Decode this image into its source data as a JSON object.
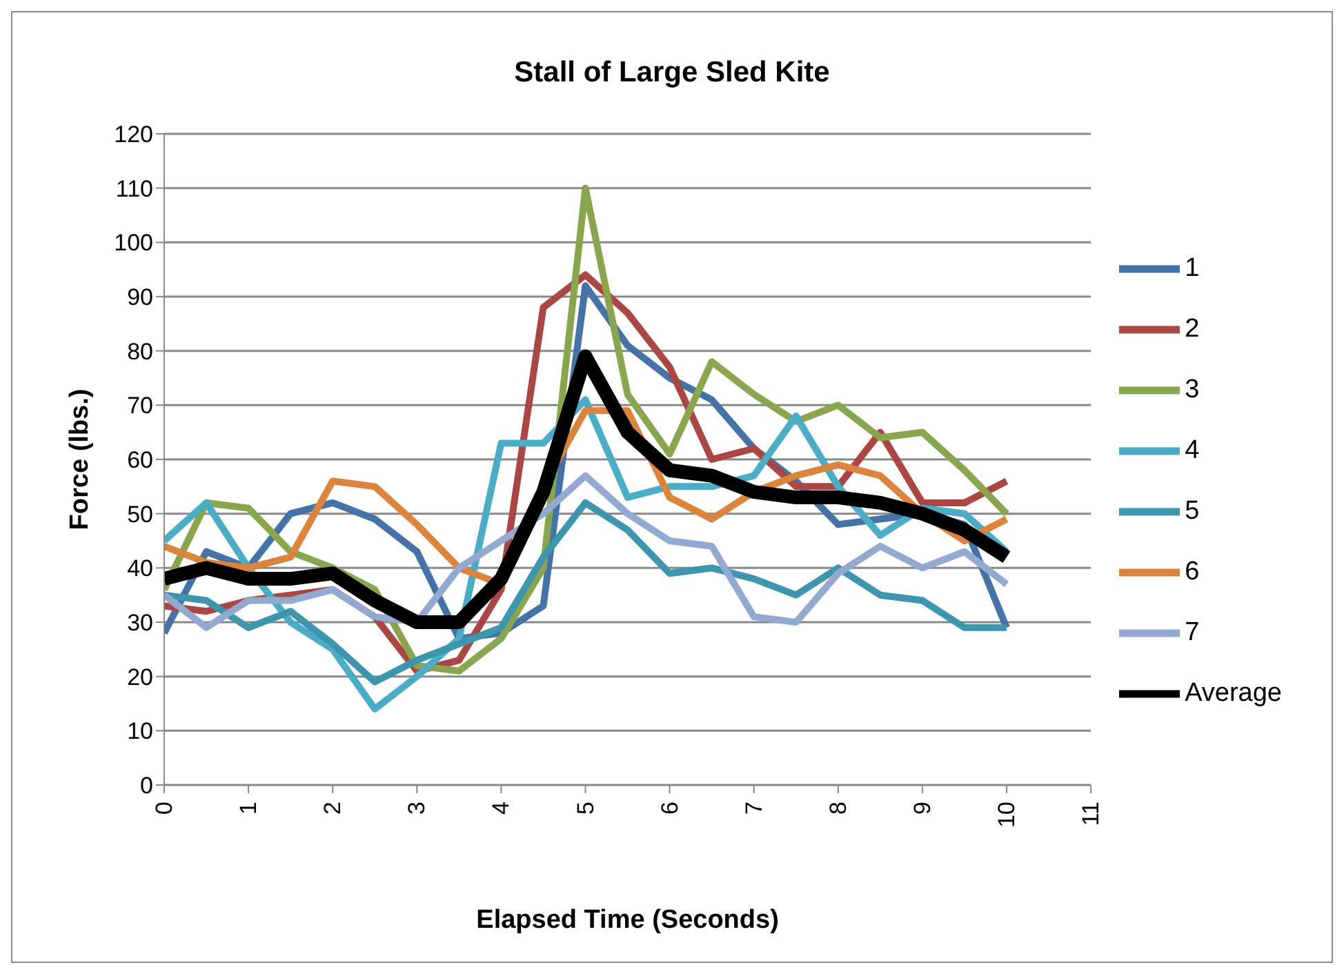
{
  "chart_data": {
    "type": "line",
    "title": "Stall of Large Sled Kite",
    "xlabel": "Elapsed Time (Seconds)",
    "ylabel": "Force (lbs.)",
    "x": [
      0,
      0.5,
      1,
      1.5,
      2,
      2.5,
      3,
      3.5,
      4,
      4.5,
      5,
      5.5,
      6,
      6.5,
      7,
      7.5,
      8,
      8.5,
      9,
      9.5,
      10
    ],
    "series": [
      {
        "name": "1",
        "color": "#4572a7",
        "values": [
          28,
          43,
          40,
          50,
          52,
          49,
          43,
          27,
          28,
          33,
          92,
          81,
          75,
          71,
          62,
          56,
          48,
          49,
          50,
          48,
          29
        ]
      },
      {
        "name": "2",
        "color": "#aa4643",
        "values": [
          33,
          32,
          34,
          35,
          36,
          31,
          21,
          23,
          36,
          88,
          94,
          87,
          77,
          60,
          62,
          55,
          55,
          65,
          52,
          52,
          56
        ]
      },
      {
        "name": "3",
        "color": "#89a54e",
        "values": [
          36,
          52,
          51,
          43,
          40,
          36,
          22,
          21,
          27,
          40,
          110,
          72,
          61,
          78,
          72,
          67,
          70,
          64,
          65,
          58,
          50
        ]
      },
      {
        "name": "4",
        "color": "#4bacc6",
        "values": [
          45,
          52,
          40,
          30,
          25,
          14,
          20,
          27,
          63,
          63,
          71,
          53,
          55,
          55,
          57,
          68,
          55,
          46,
          51,
          50,
          43
        ]
      },
      {
        "name": "5",
        "color": "#3d96ae",
        "values": [
          35,
          34,
          29,
          32,
          26,
          19,
          23,
          26,
          29,
          42,
          52,
          47,
          39,
          40,
          38,
          35,
          40,
          35,
          34,
          29,
          29
        ]
      },
      {
        "name": "6",
        "color": "#db843d",
        "values": [
          44,
          41,
          40,
          42,
          56,
          55,
          48,
          40,
          37,
          55,
          69,
          69,
          53,
          49,
          54,
          57,
          59,
          57,
          50,
          45,
          49
        ]
      },
      {
        "name": "7",
        "color": "#93a9cf",
        "values": [
          35,
          29,
          34,
          34,
          36,
          31,
          30,
          40,
          45,
          50,
          57,
          50,
          45,
          44,
          31,
          30,
          39,
          44,
          40,
          43,
          37
        ]
      },
      {
        "name": "Average",
        "color": "#000000",
        "values": [
          38,
          40,
          38,
          38,
          39,
          34,
          30,
          30,
          38,
          54,
          79,
          65,
          58,
          57,
          54,
          53,
          53,
          52,
          50,
          47,
          42
        ]
      }
    ],
    "xlim": [
      0,
      11
    ],
    "xticks": [
      0,
      1,
      2,
      3,
      4,
      5,
      6,
      7,
      8,
      9,
      10,
      11
    ],
    "ylim": [
      0,
      120
    ],
    "yticks": [
      0,
      10,
      20,
      30,
      40,
      50,
      60,
      70,
      80,
      90,
      100,
      110,
      120
    ],
    "grid": "y",
    "legend": "right",
    "marker": "none",
    "line_style": "solid"
  }
}
